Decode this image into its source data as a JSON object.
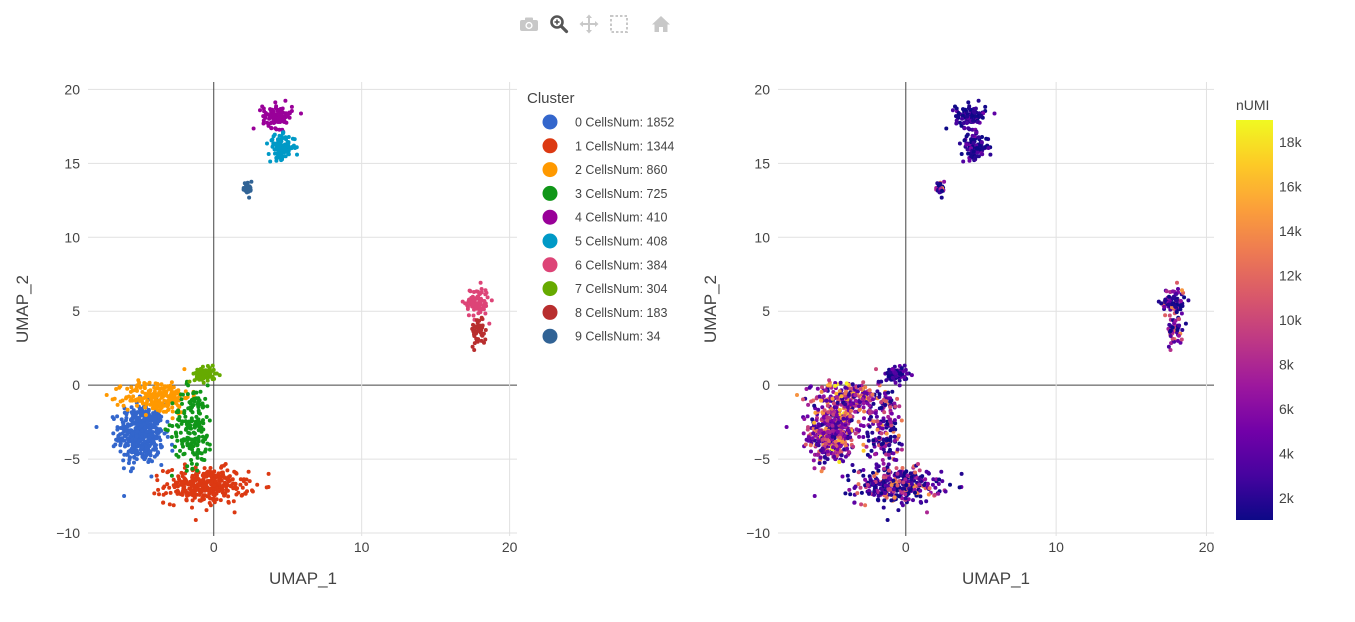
{
  "modebar": {
    "buttons": [
      {
        "name": "camera-icon",
        "title": "Download plot as a png"
      },
      {
        "name": "zoom-icon",
        "title": "Zoom"
      },
      {
        "name": "pan-icon",
        "title": "Pan"
      },
      {
        "name": "box-select-icon",
        "title": "Box Select"
      },
      {
        "name": "home-icon",
        "title": "Reset axes"
      }
    ]
  },
  "chart_data": [
    {
      "type": "scatter",
      "xlabel": "UMAP_1",
      "ylabel": "UMAP_2",
      "xlim": [
        -8.5,
        20.5
      ],
      "ylim": [
        -10.2,
        20.5
      ],
      "xticks": [
        0,
        10,
        20
      ],
      "xtick_labels": [
        "0",
        "10",
        "20"
      ],
      "yticks": [
        -10,
        -5,
        0,
        5,
        10,
        15,
        20
      ],
      "ytick_labels": [
        "−10",
        "−5",
        "0",
        "5",
        "10",
        "15",
        "20"
      ],
      "grid": true,
      "legend": {
        "title": "Cluster",
        "placement": "right",
        "entries": [
          {
            "label": "0 CellsNum: 1852",
            "color": "#3366cc"
          },
          {
            "label": "1 CellsNum: 1344",
            "color": "#dc3912"
          },
          {
            "label": "2 CellsNum: 860",
            "color": "#ff9900"
          },
          {
            "label": "3 CellsNum: 725",
            "color": "#109618"
          },
          {
            "label": "4 CellsNum: 410",
            "color": "#990099"
          },
          {
            "label": "5 CellsNum: 408",
            "color": "#0099c6"
          },
          {
            "label": "6 CellsNum: 384",
            "color": "#dd4477"
          },
          {
            "label": "7 CellsNum: 304",
            "color": "#66aa00"
          },
          {
            "label": "8 CellsNum: 183",
            "color": "#b82e2e"
          },
          {
            "label": "9 CellsNum: 34",
            "color": "#316395"
          }
        ]
      },
      "clusters": [
        {
          "id": 0,
          "count": 1852,
          "cx": -4.9,
          "cy": -3.3,
          "sx": 0.75,
          "sy": 1.0
        },
        {
          "id": 1,
          "count": 1344,
          "cx": -0.5,
          "cy": -6.8,
          "sx": 1.4,
          "sy": 0.6
        },
        {
          "id": 2,
          "count": 860,
          "cx": -3.8,
          "cy": -0.8,
          "sx": 1.1,
          "sy": 0.55
        },
        {
          "id": 3,
          "count": 725,
          "cx": -1.4,
          "cy": -2.8,
          "sx": 0.7,
          "sy": 1.4
        },
        {
          "id": 4,
          "count": 410,
          "cx": 4.3,
          "cy": 18.2,
          "sx": 0.5,
          "sy": 0.4
        },
        {
          "id": 5,
          "count": 408,
          "cx": 4.6,
          "cy": 16.1,
          "sx": 0.45,
          "sy": 0.4
        },
        {
          "id": 6,
          "count": 384,
          "cx": 17.8,
          "cy": 5.6,
          "sx": 0.4,
          "sy": 0.5
        },
        {
          "id": 7,
          "count": 304,
          "cx": -0.6,
          "cy": 0.7,
          "sx": 0.35,
          "sy": 0.25
        },
        {
          "id": 8,
          "count": 183,
          "cx": 17.9,
          "cy": 3.7,
          "sx": 0.25,
          "sy": 0.5
        },
        {
          "id": 9,
          "count": 34,
          "cx": 2.3,
          "cy": 13.3,
          "sx": 0.15,
          "sy": 0.25
        }
      ]
    },
    {
      "type": "scatter",
      "xlabel": "UMAP_1",
      "ylabel": "UMAP_2",
      "xlim": [
        -8.5,
        20.5
      ],
      "ylim": [
        -10.2,
        20.5
      ],
      "xticks": [
        0,
        10,
        20
      ],
      "xtick_labels": [
        "0",
        "10",
        "20"
      ],
      "yticks": [
        -10,
        -5,
        0,
        5,
        10,
        15,
        20
      ],
      "ytick_labels": [
        "−10",
        "−5",
        "0",
        "5",
        "10",
        "15",
        "20"
      ],
      "grid": true,
      "color_by": "nUMI",
      "colorbar": {
        "title": "nUMI",
        "range": [
          1000,
          19000
        ],
        "ticks": [
          2000,
          4000,
          6000,
          8000,
          10000,
          12000,
          14000,
          16000,
          18000
        ],
        "tick_labels": [
          "2k",
          "4k",
          "6k",
          "8k",
          "10k",
          "12k",
          "14k",
          "16k",
          "18k"
        ],
        "colorscale": [
          "#0d0887",
          "#46039f",
          "#7201a8",
          "#9c179e",
          "#bd3786",
          "#d8576b",
          "#ed7953",
          "#fb9f3a",
          "#fdca26",
          "#f0f921"
        ]
      }
    }
  ]
}
